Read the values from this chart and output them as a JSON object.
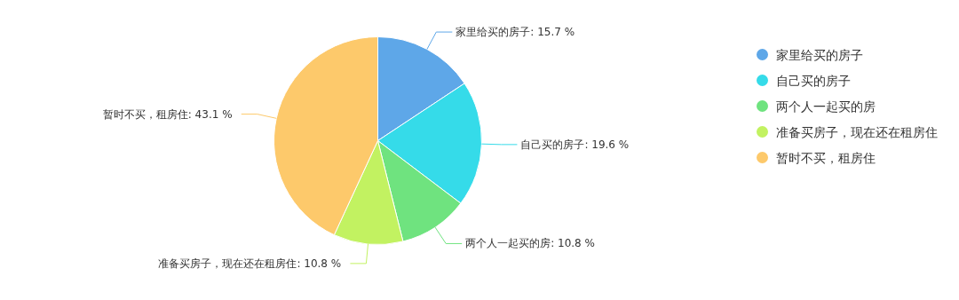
{
  "chart_data": {
    "type": "pie",
    "categories": [
      "家里给买的房子",
      "自己买的房子",
      "两个人一起买的房",
      "准备买房子，现在还在租房住",
      "暂时不买，租房住"
    ],
    "values": [
      15.7,
      19.6,
      10.8,
      10.8,
      43.1
    ],
    "colors": [
      "#5ea7e8",
      "#35dbe9",
      "#6fe37f",
      "#c2f261",
      "#fdc96b"
    ],
    "value_labels": [
      ": 15.7 %",
      ": 19.6 %",
      ": 10.8 %",
      ": 10.8 %",
      ": 43.1 %"
    ],
    "legend": "top right"
  }
}
